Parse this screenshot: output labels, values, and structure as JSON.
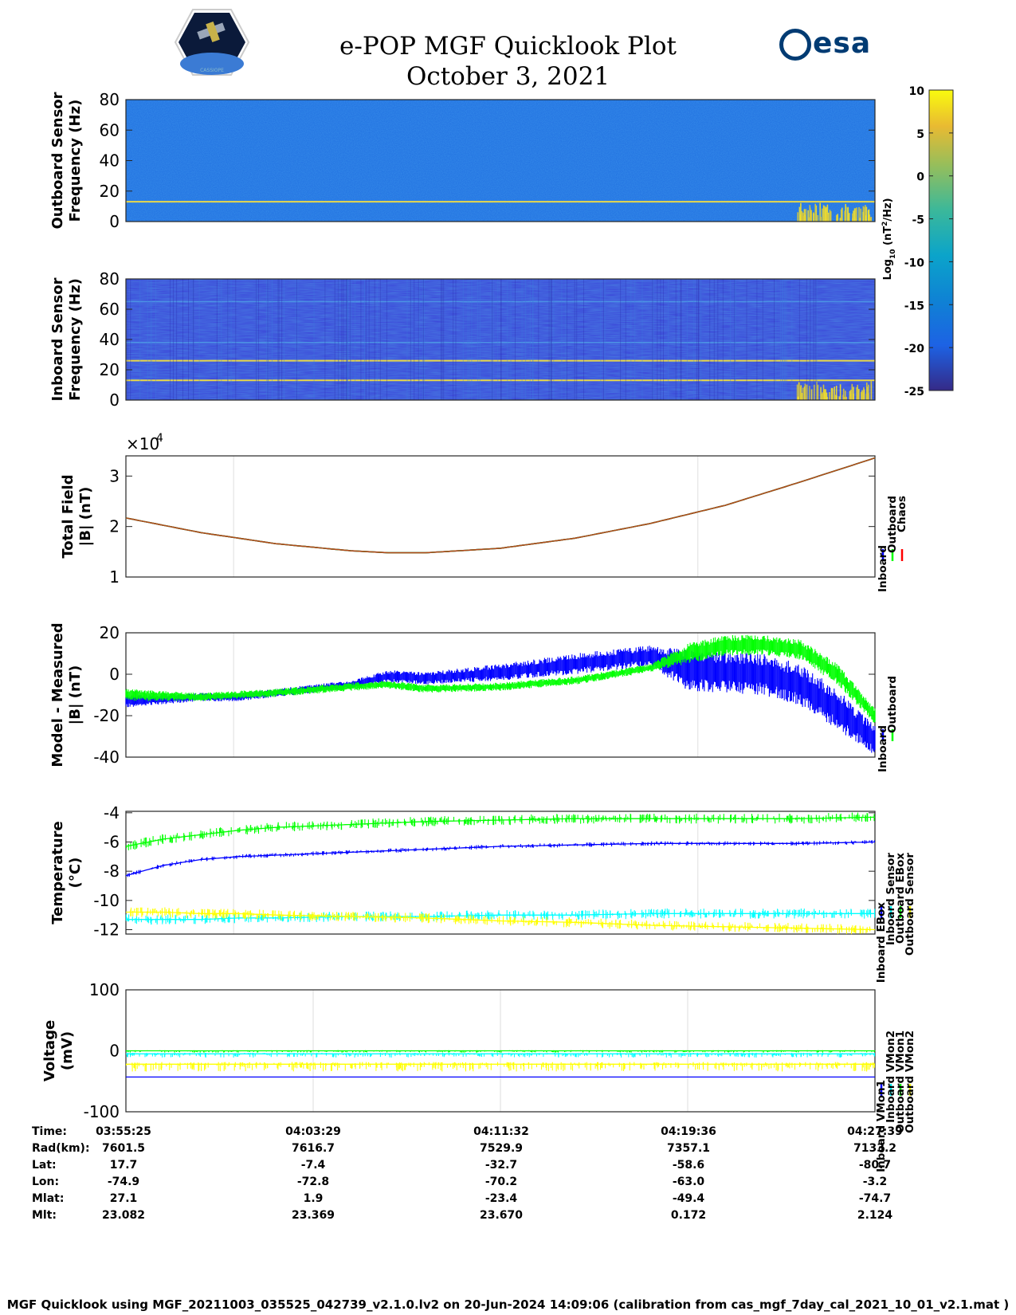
{
  "header": {
    "title_line1": "e-POP MGF Quicklook Plot",
    "title_line2": "October 3, 2021",
    "esa_logo_text": "esa",
    "cassiope_logo_text": "CASSIOPE"
  },
  "colors": {
    "blue": "#0000ff",
    "green": "#00ff00",
    "red": "#ff0000",
    "cyan": "#00ffff",
    "yellow": "#ffff00",
    "spec_bg_outboard": "#1f6ee0",
    "spec_bg_inboard": "#3a42d8",
    "spec_line": "#e8d84a"
  },
  "chart_data": [
    {
      "id": "outboard_spectrogram",
      "type": "heatmap",
      "ylabel": "Outboard Sensor\nFrequency (Hz)",
      "ylim": [
        0,
        80
      ],
      "yticks": [
        "80",
        "60",
        "40",
        "20",
        "0"
      ],
      "line_frequencies_hz": [
        13
      ],
      "note": "spectral power mostly near -15 log10(nT^2/Hz); bright burst below 10 Hz near end of pass"
    },
    {
      "id": "inboard_spectrogram",
      "type": "heatmap",
      "ylabel": "Inboard Sensor\nFrequency (Hz)",
      "ylim": [
        0,
        80
      ],
      "yticks": [
        "80",
        "60",
        "40",
        "20",
        "0"
      ],
      "line_frequencies_hz": [
        13,
        26
      ],
      "faint_lines_hz": [
        38,
        65
      ],
      "note": "background near -20 log10(nT^2/Hz); bright burst below 10 Hz near end of pass"
    },
    {
      "id": "colorbar",
      "type": "heatmap",
      "label": "Log10 (nT2/Hz)",
      "label_base": "Log",
      "label_sub": "10",
      "label_unit_pre": " (nT",
      "label_sup": "2",
      "label_unit_post": "/Hz)",
      "range": [
        -25,
        10
      ],
      "ticks": [
        "10",
        "5",
        "0",
        "-5",
        "-10",
        "-15",
        "-20",
        "-25"
      ]
    },
    {
      "id": "total_field",
      "type": "line",
      "ylabel": "Total Field\n|B| (nT)",
      "exponent_label": "×10",
      "exponent_sup": "4",
      "ylim": [
        1,
        3.4
      ],
      "yticks": [
        "3",
        "2",
        "1"
      ],
      "x": [
        0,
        0.1,
        0.2,
        0.3,
        0.35,
        0.4,
        0.5,
        0.6,
        0.7,
        0.8,
        0.9,
        1.0
      ],
      "series": [
        {
          "name": "Inboard",
          "color": "blue",
          "values": [
            2.17,
            1.88,
            1.66,
            1.52,
            1.48,
            1.48,
            1.57,
            1.77,
            2.06,
            2.42,
            2.88,
            3.36
          ]
        },
        {
          "name": "Outboard",
          "color": "green",
          "values": [
            2.17,
            1.88,
            1.66,
            1.52,
            1.48,
            1.48,
            1.57,
            1.77,
            2.06,
            2.42,
            2.88,
            3.36
          ]
        },
        {
          "name": "Chaos",
          "color": "red",
          "values": [
            2.17,
            1.88,
            1.66,
            1.52,
            1.48,
            1.48,
            1.57,
            1.77,
            2.06,
            2.42,
            2.88,
            3.36
          ]
        }
      ],
      "legend": [
        "Inboard",
        "Outboard",
        "Chaos"
      ]
    },
    {
      "id": "model_minus_measured",
      "type": "line",
      "ylabel": "Model - Measured\n|B| (nT)",
      "ylim": [
        -40,
        20
      ],
      "yticks": [
        "20",
        "0",
        "-20",
        "-40"
      ],
      "x": [
        0,
        0.1,
        0.15,
        0.2,
        0.3,
        0.35,
        0.4,
        0.5,
        0.6,
        0.65,
        0.7,
        0.75,
        0.8,
        0.85,
        0.9,
        0.95,
        1.0
      ],
      "series": [
        {
          "name": "Inboard",
          "color": "blue",
          "center": [
            -13,
            -11,
            -11,
            -9,
            -5,
            -1,
            -2,
            1,
            5,
            7,
            9,
            2,
            1,
            0,
            -5,
            -17,
            -32
          ],
          "spread": [
            3,
            2,
            2,
            2,
            2,
            3,
            3,
            4,
            5,
            5,
            5,
            10,
            10,
            10,
            10,
            10,
            7
          ]
        },
        {
          "name": "Outboard",
          "color": "green",
          "center": [
            -10,
            -11,
            -10,
            -9,
            -6,
            -5,
            -7,
            -6,
            -3,
            0,
            3,
            10,
            14,
            14,
            12,
            0,
            -20
          ],
          "spread": [
            3,
            2,
            2,
            2,
            2,
            2,
            2,
            2,
            2,
            2,
            2,
            5,
            5,
            5,
            5,
            5,
            4
          ]
        }
      ],
      "legend": [
        "Inboard",
        "Outboard"
      ]
    },
    {
      "id": "temperature",
      "type": "line",
      "ylabel": "Temperature\n(°C)",
      "ylim": [
        -12.3,
        -3.9
      ],
      "yticks": [
        "-4",
        "-6",
        "-8",
        "-10",
        "-12"
      ],
      "x": [
        0,
        0.05,
        0.1,
        0.15,
        0.2,
        0.3,
        0.4,
        0.5,
        0.6,
        0.7,
        0.8,
        0.9,
        1.0
      ],
      "series": [
        {
          "name": "Inboard EBox",
          "color": "blue",
          "values": [
            -8.3,
            -7.6,
            -7.2,
            -7.0,
            -6.9,
            -6.7,
            -6.5,
            -6.3,
            -6.2,
            -6.1,
            -6.1,
            -6.1,
            -6.0
          ]
        },
        {
          "name": "Inboard Sensor",
          "color": "cyan",
          "values": [
            -11.3,
            -11.3,
            -11.3,
            -11.2,
            -11.2,
            -11.1,
            -11.1,
            -11.0,
            -11.0,
            -10.9,
            -10.9,
            -10.9,
            -10.9
          ]
        },
        {
          "name": "Outboard EBox",
          "color": "green",
          "values": [
            -6.3,
            -5.8,
            -5.5,
            -5.2,
            -5.0,
            -4.8,
            -4.6,
            -4.5,
            -4.4,
            -4.4,
            -4.4,
            -4.4,
            -4.3
          ]
        },
        {
          "name": "Outboard Sensor",
          "color": "yellow",
          "values": [
            -10.8,
            -10.8,
            -10.9,
            -10.9,
            -11.0,
            -11.1,
            -11.2,
            -11.4,
            -11.5,
            -11.7,
            -11.8,
            -11.9,
            -12.0
          ]
        }
      ],
      "legend": [
        "Inboard EBox",
        "Inboard Sensor",
        "Outboard EBox",
        "Outboard Sensor"
      ]
    },
    {
      "id": "voltage",
      "type": "line",
      "ylabel": "Voltage\n(mV)",
      "ylim": [
        -100,
        100
      ],
      "yticks": [
        "100",
        "0",
        "-100"
      ],
      "x": [
        0,
        1
      ],
      "series": [
        {
          "name": "Inboard VMon1",
          "color": "blue",
          "values": [
            -43,
            -43
          ]
        },
        {
          "name": "Inboard VMon2",
          "color": "cyan",
          "values": [
            -5,
            -5
          ]
        },
        {
          "name": "Outboard VMon1",
          "color": "green",
          "values": [
            0,
            0
          ]
        },
        {
          "name": "Outboard VMon2",
          "color": "yellow",
          "values": [
            -22,
            -22
          ]
        }
      ],
      "legend": [
        "Inboard VMon1",
        "Inboard VMon2",
        "Outboard VMon1",
        "Outboard VMon2"
      ]
    }
  ],
  "info_table": {
    "row_labels": [
      "Time:",
      "Rad(km):",
      "Lat:",
      "Lon:",
      "Mlat:",
      "Mlt:"
    ],
    "columns": [
      [
        "03:55:25",
        "7601.5",
        "17.7",
        "-74.9",
        "27.1",
        "23.082"
      ],
      [
        "04:03:29",
        "7616.7",
        "-7.4",
        "-72.8",
        "1.9",
        "23.369"
      ],
      [
        "04:11:32",
        "7529.9",
        "-32.7",
        "-70.2",
        "-23.4",
        "23.670"
      ],
      [
        "04:19:36",
        "7357.1",
        "-58.6",
        "-63.0",
        "-49.4",
        "0.172"
      ],
      [
        "04:27:39",
        "7133.2",
        "-80.7",
        "-3.2",
        "-74.7",
        "2.124"
      ]
    ]
  },
  "footer": "MGF Quicklook using MGF_20211003_035525_042739_v2.1.0.lv2 on 20-Jun-2024 14:09:06 (calibration from cas_mgf_7day_cal_2021_10_01_v2.1.mat )"
}
